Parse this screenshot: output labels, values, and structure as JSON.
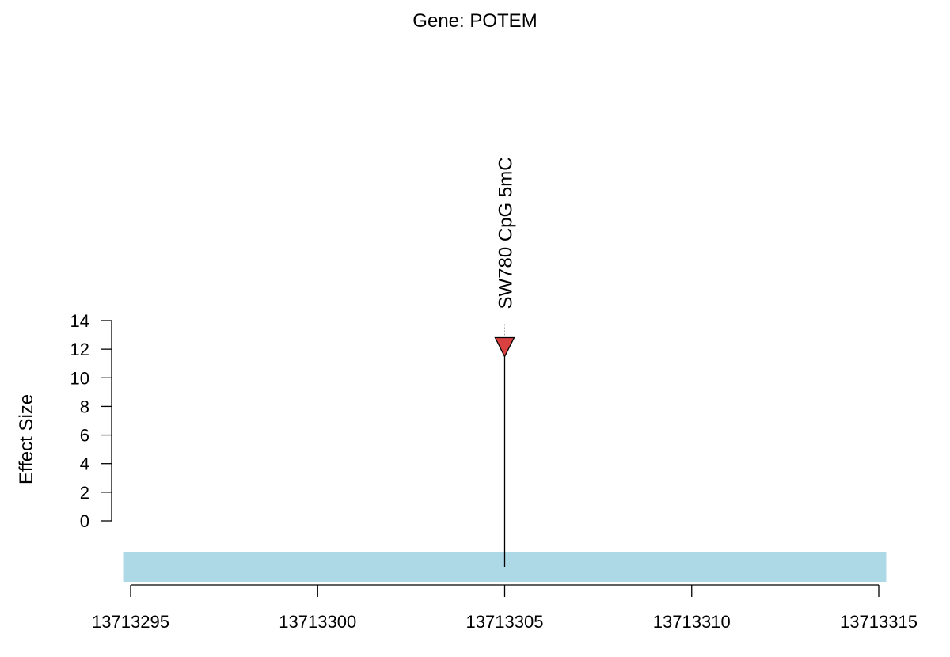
{
  "chart_data": {
    "type": "lollipop",
    "title": "Gene: POTEM",
    "xlabel": "",
    "ylabel": "Effect Size",
    "xlim": [
      13713295,
      13713315
    ],
    "ylim": [
      0,
      14
    ],
    "x_ticks": [
      13713295,
      13713300,
      13713305,
      13713310,
      13713315
    ],
    "y_ticks": [
      0,
      2,
      4,
      6,
      8,
      10,
      12,
      14
    ],
    "grid": false,
    "legend": "none",
    "gene_region": {
      "start": 13713294.8,
      "end": 13713315.2,
      "color": "#add8e6"
    },
    "points": [
      {
        "x": 13713305,
        "y": 12.2,
        "label": "SW780 CpG 5mC",
        "marker": "triangle-down",
        "color": "#d94040"
      }
    ]
  }
}
